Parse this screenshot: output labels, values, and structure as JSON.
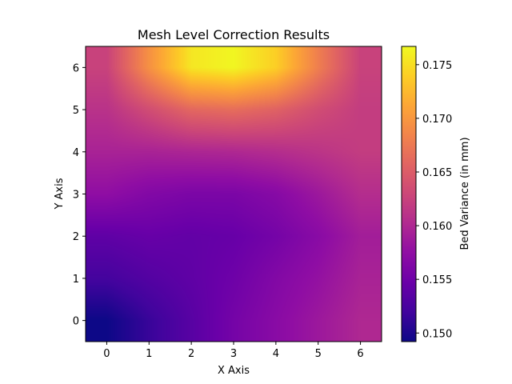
{
  "chart_data": {
    "type": "heatmap",
    "title": "Mesh Level Correction Results",
    "xlabel": "X Axis",
    "ylabel": "Y Axis",
    "xlim": [
      -0.5,
      6.5
    ],
    "ylim": [
      -0.5,
      6.5
    ],
    "xticks": [
      "0",
      "1",
      "2",
      "3",
      "4",
      "5",
      "6"
    ],
    "yticks": [
      "0",
      "1",
      "2",
      "3",
      "4",
      "5",
      "6"
    ],
    "x": [
      0,
      1,
      2,
      3,
      4,
      5,
      6
    ],
    "y": [
      0,
      1,
      2,
      3,
      4,
      5,
      6
    ],
    "z": [
      [
        0.1492,
        0.1515,
        0.1535,
        0.1555,
        0.157,
        0.1585,
        0.16
      ],
      [
        0.1522,
        0.1532,
        0.154,
        0.155,
        0.1565,
        0.1578,
        0.1595
      ],
      [
        0.154,
        0.1545,
        0.1542,
        0.1545,
        0.1555,
        0.157,
        0.159
      ],
      [
        0.1575,
        0.1565,
        0.156,
        0.156,
        0.1568,
        0.1585,
        0.1605
      ],
      [
        0.1595,
        0.1595,
        0.1598,
        0.16,
        0.1605,
        0.1612,
        0.162
      ],
      [
        0.161,
        0.1635,
        0.166,
        0.1665,
        0.1655,
        0.1635,
        0.162
      ],
      [
        0.1625,
        0.1695,
        0.1755,
        0.1765,
        0.174,
        0.168,
        0.1625
      ]
    ],
    "colormap": "plasma",
    "colorbar": {
      "label": "Bed Variance (in mm)",
      "range": [
        0.1492,
        0.1767
      ],
      "ticks": [
        "0.150",
        "0.155",
        "0.160",
        "0.165",
        "0.170",
        "0.175"
      ],
      "tick_values": [
        0.15,
        0.155,
        0.16,
        0.165,
        0.17,
        0.175
      ]
    },
    "grid": false
  }
}
